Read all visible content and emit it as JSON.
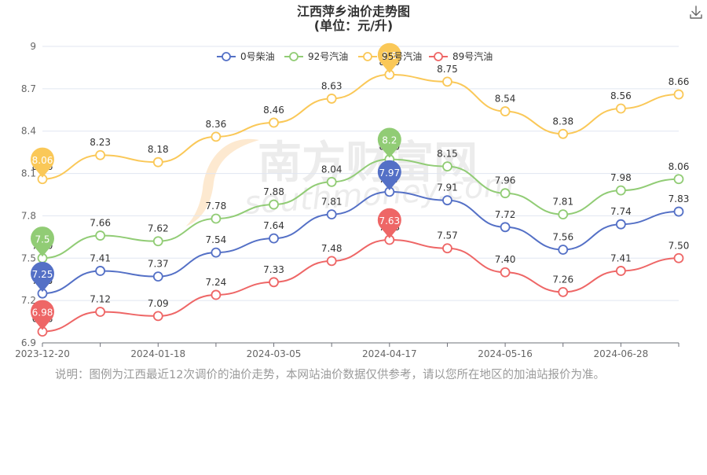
{
  "chart_data": {
    "type": "line",
    "title": "江西萍乡油价走势图",
    "subtitle": "(单位：元/升)",
    "x": [
      "2023-12-20",
      "",
      "2024-01-18",
      "",
      "2024-03-05",
      "",
      "2024-04-17",
      "",
      "2024-05-16",
      "",
      "2024-06-28",
      ""
    ],
    "xtick_labels": [
      "2023-12-20",
      "2024-01-18",
      "2024-03-05",
      "2024-04-17",
      "2024-05-16",
      "2024-06-28"
    ],
    "ylim": [
      6.9,
      9
    ],
    "yticks": [
      "6.9",
      "7.2",
      "7.5",
      "7.8",
      "8.1",
      "8.4",
      "8.7",
      "9"
    ],
    "legend_position": "top",
    "grid": "horizontal",
    "series": [
      {
        "name": "0号柴油",
        "color": "#5470c6",
        "values": [
          7.25,
          7.41,
          7.37,
          7.54,
          7.64,
          7.81,
          7.97,
          7.91,
          7.72,
          7.56,
          7.74,
          7.83
        ],
        "labels": [
          "7.25",
          "7.41",
          "7.37",
          "7.54",
          "7.64",
          "7.81",
          "7.97",
          "7.91",
          "7.72",
          "7.56",
          "7.74",
          "7.83"
        ],
        "max_pin": {
          "index": 6,
          "label": "7.97"
        },
        "min_pin": {
          "index": 0,
          "label": "7.25"
        }
      },
      {
        "name": "92号汽油",
        "color": "#91cc75",
        "values": [
          7.5,
          7.66,
          7.62,
          7.78,
          7.88,
          8.04,
          8.2,
          8.15,
          7.96,
          7.81,
          7.98,
          8.06
        ],
        "labels": [
          "7.50",
          "7.66",
          "7.62",
          "7.78",
          "7.88",
          "8.04",
          "8.20",
          "8.15",
          "7.96",
          "7.81",
          "7.98",
          "8.06"
        ],
        "max_pin": {
          "index": 6,
          "label": "8.2"
        },
        "min_pin": {
          "index": 0,
          "label": "7.5"
        }
      },
      {
        "name": "95号汽油",
        "color": "#fac858",
        "values": [
          8.06,
          8.23,
          8.18,
          8.36,
          8.46,
          8.63,
          8.8,
          8.75,
          8.54,
          8.38,
          8.56,
          8.66
        ],
        "labels": [
          "8.06",
          "8.23",
          "8.18",
          "8.36",
          "8.46",
          "8.63",
          "8.80",
          "8.75",
          "8.54",
          "8.38",
          "8.56",
          "8.66"
        ],
        "max_pin": {
          "index": 6,
          "label": "8.8"
        },
        "min_pin": {
          "index": 0,
          "label": "8.06"
        }
      },
      {
        "name": "89号汽油",
        "color": "#ee6666",
        "values": [
          6.98,
          7.12,
          7.09,
          7.24,
          7.33,
          7.48,
          7.63,
          7.57,
          7.4,
          7.26,
          7.41,
          7.5
        ],
        "labels": [
          "6.98",
          "7.12",
          "7.09",
          "7.24",
          "7.33",
          "7.48",
          "7.63",
          "7.57",
          "7.40",
          "7.26",
          "7.41",
          "7.50"
        ],
        "max_pin": {
          "index": 6,
          "label": "7.63"
        },
        "min_pin": {
          "index": 0,
          "label": "6.98"
        }
      }
    ]
  },
  "watermark": {
    "text": "南方财富网",
    "url": "southmoney.com"
  },
  "note": "说明：图例为江西最近12次调价的油价走势，本网站油价数据仅供参考，请以您所在地区的加油站报价为准。",
  "toolbar": {
    "download_icon": "download-icon"
  }
}
